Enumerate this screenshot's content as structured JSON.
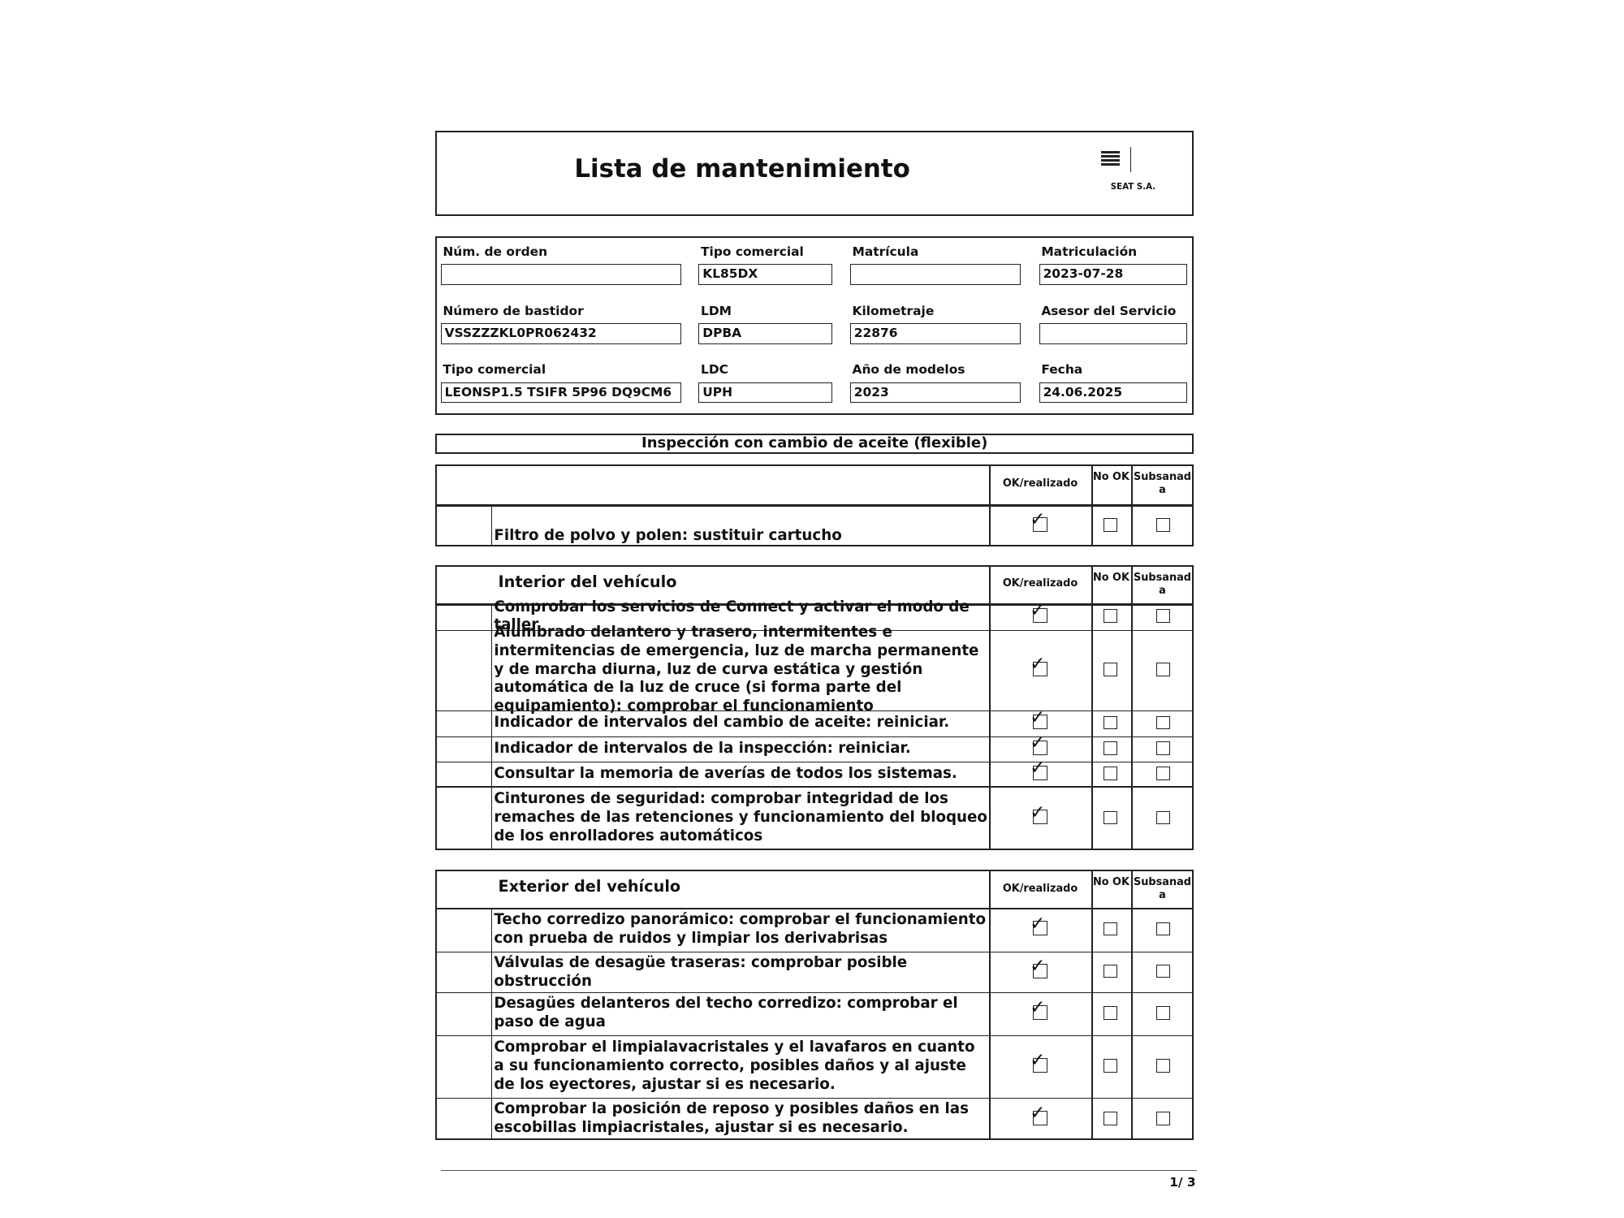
{
  "header": {
    "title": "Lista de mantenimiento",
    "brand": "SEAT S.A."
  },
  "fields": [
    {
      "label": "Núm. de orden"
    },
    {
      "label": "Tipo comercial",
      "value": "KL85DX"
    },
    {
      "label": "Matrícula"
    },
    {
      "label": "Matriculación",
      "value": "2023-07-28"
    },
    {
      "label": "Número de bastidor",
      "value": "VSSZZZKL0PR062432"
    },
    {
      "label": "LDM",
      "value": "DPBA"
    },
    {
      "label": "Kilometraje",
      "value": "22876"
    },
    {
      "label": "Asesor del Servicio"
    },
    {
      "label": "Tipo comercial",
      "value": "LEONSP1.5 TSIFR 5P96 DQ9CM6"
    },
    {
      "label": "LDC",
      "value": "UPH"
    },
    {
      "label": "Año de modelos",
      "value": "2023"
    },
    {
      "label": "Fecha",
      "value": "24.06.2025"
    }
  ],
  "banner": "Inspección con cambio de aceite (flexible)",
  "sections": [
    {
      "columns": [
        "OK/realizado",
        "No OK",
        "Subsanada"
      ],
      "items": [
        {
          "text": "Filtro de polvo y polen: sustituir cartucho",
          "ok": true
        }
      ]
    },
    {
      "title": "Interior del vehículo",
      "columns": [
        "OK/realizado",
        "No OK",
        "Subsanada"
      ],
      "items": [
        {
          "text": "Comprobar los servicios de Connect y activar el modo de taller",
          "ok": true
        },
        {
          "text": "Alumbrado delantero y trasero, intermitentes e intermitencias de emergencia, luz de marcha permanente y de marcha diurna, luz de curva estática y gestión automática de la luz de cruce (si forma parte del equipamiento): comprobar el funcionamiento",
          "ok": true
        },
        {
          "text": "Indicador de intervalos del cambio de aceite: reiniciar.",
          "ok": true
        },
        {
          "text": "Indicador de intervalos de la inspección: reiniciar.",
          "ok": true
        },
        {
          "text": "Consultar la memoria de averías de todos los sistemas.",
          "ok": true
        },
        {
          "text": "Cinturones de seguridad: comprobar integridad de los remaches de las retenciones y funcionamiento del bloqueo de los enrolladores automáticos",
          "ok": true
        }
      ]
    },
    {
      "title": "Exterior del vehículo",
      "columns": [
        "OK/realizado",
        "No OK",
        "Subsanada"
      ],
      "items": [
        {
          "text": "Techo corredizo panorámico: comprobar el funcionamiento con prueba de ruidos y limpiar los derivabrisas",
          "ok": true
        },
        {
          "text": "Válvulas de desagüe traseras: comprobar posible obstrucción",
          "ok": true
        },
        {
          "text": "Desagües delanteros del techo corredizo: comprobar el paso de agua",
          "ok": true
        },
        {
          "text": "Comprobar el limpialavacristales y el lavafaros en cuanto a su funcionamiento correcto, posibles daños y al ajuste de los eyectores, ajustar si es necesario.",
          "ok": true
        },
        {
          "text": "Comprobar la posición de reposo y posibles daños en las escobillas limpiacristales, ajustar si es necesario.",
          "ok": true
        }
      ]
    }
  ],
  "footer": {
    "page": "1/ 3"
  }
}
